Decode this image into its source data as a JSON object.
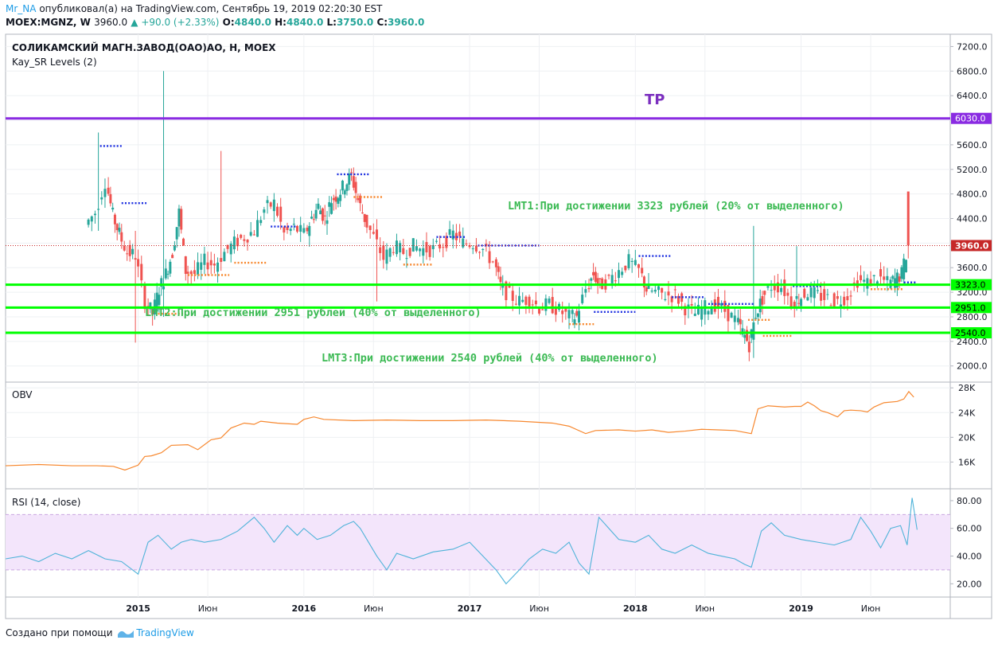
{
  "header": {
    "author": "Mr_NA",
    "published_text": "опубликовал(а) на TradingView.com, Сентябрь 19, 2019 02:20:30 EST",
    "symbol": "MOEX:MGNZ, W",
    "last": "3960.0",
    "change": "▲ +90.0 (+2.33%)",
    "o_label": "O:",
    "o_value": "4840.0",
    "h_label": "H:",
    "h_value": "4840.0",
    "l_label": "L:",
    "l_value": "3750.0",
    "c_label": "C:",
    "c_value": "3960.0"
  },
  "footer": {
    "created_with": "Создано при помощи",
    "brand": "TradingView"
  },
  "colors": {
    "up": "#26a69a",
    "down": "#ef5350",
    "tp": "#8a2be2",
    "support": "#00ff00",
    "obv": "#f7882f",
    "rsi": "#4fb3d9",
    "rsi_band": "#f3e5fb",
    "sr_blue": "#1c2fe0",
    "sr_orange": "#f7882f",
    "price_line": "#c62828"
  },
  "chart_data": [
    {
      "type": "candlestick",
      "title": "СОЛИКАМСКИЙ МАГН.ЗАВОД(ОАО)АО, Н, MOEX",
      "indicator": "Kay_SR Levels (2)",
      "ylim": [
        1750,
        7400
      ],
      "yticks": [
        "7200.0",
        "6800.0",
        "6400.0",
        "6000.0",
        "5600.0",
        "5200.0",
        "4800.0",
        "4400.0",
        "4000.0",
        "3600.0",
        "3200.0",
        "2800.0",
        "2400.0",
        "2000.0"
      ],
      "xticks": [
        "2015",
        "Июн",
        "2016",
        "Июн",
        "2017",
        "Июн",
        "2018",
        "Июн",
        "2019",
        "Июн"
      ],
      "xtick_dates": [
        2015.0,
        2015.42,
        2016.0,
        2016.42,
        2017.0,
        2017.42,
        2018.0,
        2018.42,
        2019.0,
        2019.42
      ],
      "x_range": [
        2014.2,
        2019.9
      ],
      "levels": [
        {
          "value": 6030,
          "label": "6030.0",
          "kind": "tp"
        },
        {
          "value": 3323,
          "label": "3323.0",
          "kind": "support"
        },
        {
          "value": 2951,
          "label": "2951.0",
          "kind": "support"
        },
        {
          "value": 2540,
          "label": "2540.0",
          "kind": "support"
        }
      ],
      "last_price": {
        "value": 3960,
        "label": "3960.0"
      },
      "annotations": {
        "tp": "TP",
        "lmt1": "LMT1:При достижении 3323 рублей (20% от выделенного)",
        "lmt2": "LMT2:При достижении 2951 рублей (40% от выделенного)",
        "lmt3": "LMT3:При достижении 2540 рублей (40% от выделенного)"
      },
      "price_path": [
        [
          2014.7,
          4300
        ],
        [
          2014.76,
          4500
        ],
        [
          2014.82,
          5000
        ],
        [
          2014.86,
          4450
        ],
        [
          2014.9,
          4150
        ],
        [
          2014.95,
          3850
        ],
        [
          2015.0,
          3800
        ],
        [
          2015.06,
          3050
        ],
        [
          2015.1,
          2850
        ],
        [
          2015.14,
          3250
        ],
        [
          2015.18,
          3500
        ],
        [
          2015.22,
          3850
        ],
        [
          2015.26,
          4500
        ],
        [
          2015.3,
          3550
        ],
        [
          2015.36,
          3500
        ],
        [
          2015.42,
          3700
        ],
        [
          2015.48,
          3650
        ],
        [
          2015.54,
          3850
        ],
        [
          2015.6,
          4000
        ],
        [
          2015.66,
          4100
        ],
        [
          2015.72,
          4200
        ],
        [
          2015.78,
          4550
        ],
        [
          2015.84,
          4650
        ],
        [
          2015.9,
          4150
        ],
        [
          2015.96,
          4250
        ],
        [
          2016.02,
          4150
        ],
        [
          2016.06,
          4400
        ],
        [
          2016.1,
          4600
        ],
        [
          2016.14,
          4400
        ],
        [
          2016.18,
          4700
        ],
        [
          2016.22,
          4800
        ],
        [
          2016.26,
          4950
        ],
        [
          2016.3,
          5100
        ],
        [
          2016.34,
          4700
        ],
        [
          2016.38,
          4400
        ],
        [
          2016.44,
          4100
        ],
        [
          2016.5,
          3750
        ],
        [
          2016.56,
          3950
        ],
        [
          2016.62,
          3850
        ],
        [
          2016.68,
          3950
        ],
        [
          2016.74,
          3900
        ],
        [
          2016.8,
          3900
        ],
        [
          2016.86,
          4000
        ],
        [
          2016.92,
          4150
        ],
        [
          2016.98,
          4000
        ],
        [
          2017.04,
          4000
        ],
        [
          2017.1,
          3900
        ],
        [
          2017.16,
          3700
        ],
        [
          2017.2,
          3300
        ],
        [
          2017.26,
          3150
        ],
        [
          2017.32,
          3050
        ],
        [
          2017.38,
          3100
        ],
        [
          2017.44,
          2950
        ],
        [
          2017.5,
          3000
        ],
        [
          2017.56,
          2900
        ],
        [
          2017.62,
          2800
        ],
        [
          2017.66,
          2800
        ],
        [
          2017.72,
          3250
        ],
        [
          2017.76,
          3500
        ],
        [
          2017.8,
          3300
        ],
        [
          2017.86,
          3400
        ],
        [
          2017.92,
          3550
        ],
        [
          2017.98,
          3700
        ],
        [
          2018.04,
          3550
        ],
        [
          2018.08,
          3250
        ],
        [
          2018.14,
          3200
        ],
        [
          2018.2,
          3150
        ],
        [
          2018.26,
          3150
        ],
        [
          2018.32,
          2950
        ],
        [
          2018.38,
          2850
        ],
        [
          2018.44,
          2950
        ],
        [
          2018.5,
          3000
        ],
        [
          2018.56,
          2900
        ],
        [
          2018.62,
          2750
        ],
        [
          2018.66,
          2550
        ],
        [
          2018.7,
          2350
        ],
        [
          2018.74,
          2850
        ],
        [
          2018.78,
          3100
        ],
        [
          2018.84,
          3300
        ],
        [
          2018.9,
          3300
        ],
        [
          2018.96,
          3050
        ],
        [
          2019.0,
          3100
        ],
        [
          2019.06,
          3200
        ],
        [
          2019.12,
          3150
        ],
        [
          2019.18,
          3100
        ],
        [
          2019.24,
          3050
        ],
        [
          2019.3,
          3150
        ],
        [
          2019.36,
          3400
        ],
        [
          2019.42,
          3350
        ],
        [
          2019.48,
          3450
        ],
        [
          2019.54,
          3350
        ],
        [
          2019.58,
          3400
        ],
        [
          2019.62,
          3500
        ],
        [
          2019.66,
          3960
        ]
      ],
      "extremes": [
        {
          "x": 2014.76,
          "high": 5800,
          "low": 4200
        },
        {
          "x": 2014.98,
          "high": 4200,
          "low": 2380
        },
        {
          "x": 2015.15,
          "high": 6800,
          "low": 2800
        },
        {
          "x": 2015.5,
          "high": 5500,
          "low": 3550
        },
        {
          "x": 2016.45,
          "high": 4100,
          "low": 3050
        },
        {
          "x": 2018.72,
          "high": 4280,
          "low": 2130
        },
        {
          "x": 2018.97,
          "high": 3950,
          "low": 2900
        },
        {
          "x": 2019.65,
          "high": 4860,
          "low": 3200
        }
      ],
      "sr_levels": [
        {
          "x0": 2014.9,
          "x1": 2015.05,
          "value": 4650,
          "color": "blue"
        },
        {
          "x0": 2014.77,
          "x1": 2014.9,
          "value": 5580,
          "color": "blue"
        },
        {
          "x0": 2015.12,
          "x1": 2015.28,
          "value": 2850,
          "color": "orange"
        },
        {
          "x0": 2015.3,
          "x1": 2015.55,
          "value": 3480,
          "color": "orange"
        },
        {
          "x0": 2015.58,
          "x1": 2015.78,
          "value": 3680,
          "color": "orange"
        },
        {
          "x0": 2015.8,
          "x1": 2015.95,
          "value": 4270,
          "color": "blue"
        },
        {
          "x0": 2016.2,
          "x1": 2016.4,
          "value": 5120,
          "color": "blue"
        },
        {
          "x0": 2016.3,
          "x1": 2016.48,
          "value": 4750,
          "color": "orange"
        },
        {
          "x0": 2016.6,
          "x1": 2016.78,
          "value": 3650,
          "color": "orange"
        },
        {
          "x0": 2016.8,
          "x1": 2016.98,
          "value": 4100,
          "color": "blue"
        },
        {
          "x0": 2017.05,
          "x1": 2017.42,
          "value": 3960,
          "color": "blue"
        },
        {
          "x0": 2017.6,
          "x1": 2017.75,
          "value": 2680,
          "color": "orange"
        },
        {
          "x0": 2017.75,
          "x1": 2018.0,
          "value": 2880,
          "color": "blue"
        },
        {
          "x0": 2018.02,
          "x1": 2018.22,
          "value": 3790,
          "color": "blue"
        },
        {
          "x0": 2018.22,
          "x1": 2018.42,
          "value": 3120,
          "color": "blue"
        },
        {
          "x0": 2018.44,
          "x1": 2018.72,
          "value": 3010,
          "color": "blue"
        },
        {
          "x0": 2018.68,
          "x1": 2018.82,
          "value": 2750,
          "color": "orange"
        },
        {
          "x0": 2018.77,
          "x1": 2018.95,
          "value": 2490,
          "color": "orange"
        },
        {
          "x0": 2018.95,
          "x1": 2019.12,
          "value": 3300,
          "color": "blue"
        },
        {
          "x0": 2019.12,
          "x1": 2019.38,
          "value": 2950,
          "color": "orange"
        },
        {
          "x0": 2019.42,
          "x1": 2019.62,
          "value": 3250,
          "color": "orange"
        },
        {
          "x0": 2019.62,
          "x1": 2019.7,
          "value": 3360,
          "color": "blue"
        }
      ]
    },
    {
      "type": "line",
      "title": "OBV",
      "ylim": [
        11800,
        28800
      ],
      "yticks": [
        "28K",
        "24K",
        "20K",
        "16K"
      ],
      "series": [
        {
          "x": [
            2014.2,
            2014.4,
            2014.6,
            2014.75,
            2014.85,
            2014.92,
            2015.0,
            2015.04,
            2015.08,
            2015.14,
            2015.2,
            2015.3,
            2015.36,
            2015.44,
            2015.5,
            2015.56,
            2015.64,
            2015.7,
            2015.74,
            2015.84,
            2015.96,
            2016.0,
            2016.06,
            2016.12,
            2016.3,
            2016.5,
            2016.7,
            2016.9,
            2017.1,
            2017.3,
            2017.5,
            2017.6,
            2017.7,
            2017.76,
            2017.9,
            2018.0,
            2018.1,
            2018.2,
            2018.3,
            2018.4,
            2018.5,
            2018.6,
            2018.7,
            2018.74,
            2018.8,
            2018.9,
            2018.96,
            2019.0,
            2019.04,
            2019.08,
            2019.12,
            2019.16,
            2019.22,
            2019.26,
            2019.3,
            2019.36,
            2019.4,
            2019.44,
            2019.5,
            2019.58,
            2019.62,
            2019.65,
            2019.68
          ],
          "values": [
            15400,
            15600,
            15400,
            15400,
            15300,
            14700,
            15500,
            16900,
            17000,
            17500,
            18700,
            18800,
            18000,
            19600,
            19900,
            21500,
            22300,
            22100,
            22600,
            22300,
            22100,
            22900,
            23300,
            22900,
            22700,
            22800,
            22700,
            22700,
            22800,
            22600,
            22300,
            21800,
            20600,
            21100,
            21200,
            21000,
            21200,
            20800,
            21000,
            21300,
            21200,
            21100,
            20600,
            24600,
            25100,
            24900,
            25000,
            25000,
            25700,
            25100,
            24300,
            24000,
            23300,
            24300,
            24400,
            24300,
            24100,
            24900,
            25600,
            25800,
            26200,
            27400,
            26500
          ]
        }
      ]
    },
    {
      "type": "line",
      "title": "RSI (14, close)",
      "ylim": [
        11,
        88
      ],
      "yticks": [
        "80.00",
        "60.00",
        "40.00",
        "20.00"
      ],
      "band": [
        30,
        70
      ],
      "series": [
        {
          "x": [
            2014.2,
            2014.3,
            2014.4,
            2014.5,
            2014.6,
            2014.7,
            2014.8,
            2014.9,
            2015.0,
            2015.06,
            2015.12,
            2015.2,
            2015.26,
            2015.32,
            2015.4,
            2015.5,
            2015.6,
            2015.7,
            2015.76,
            2015.82,
            2015.9,
            2015.96,
            2016.0,
            2016.08,
            2016.16,
            2016.24,
            2016.3,
            2016.34,
            2016.44,
            2016.5,
            2016.56,
            2016.66,
            2016.78,
            2016.9,
            2017.0,
            2017.08,
            2017.16,
            2017.22,
            2017.3,
            2017.36,
            2017.44,
            2017.52,
            2017.6,
            2017.66,
            2017.72,
            2017.78,
            2017.9,
            2018.0,
            2018.08,
            2018.16,
            2018.24,
            2018.34,
            2018.44,
            2018.52,
            2018.6,
            2018.66,
            2018.7,
            2018.76,
            2018.82,
            2018.9,
            2019.0,
            2019.1,
            2019.2,
            2019.3,
            2019.36,
            2019.42,
            2019.48,
            2019.54,
            2019.6,
            2019.64,
            2019.67,
            2019.7
          ],
          "values": [
            38,
            40,
            36,
            42,
            38,
            44,
            38,
            36,
            27,
            50,
            55,
            45,
            50,
            52,
            50,
            52,
            58,
            68,
            60,
            50,
            62,
            55,
            60,
            52,
            55,
            62,
            65,
            60,
            40,
            30,
            42,
            38,
            43,
            45,
            50,
            40,
            30,
            20,
            30,
            38,
            45,
            42,
            50,
            35,
            27,
            68,
            52,
            50,
            55,
            45,
            42,
            48,
            42,
            40,
            38,
            34,
            32,
            58,
            64,
            55,
            52,
            50,
            48,
            52,
            68,
            58,
            46,
            60,
            62,
            48,
            82,
            59
          ]
        }
      ]
    }
  ]
}
